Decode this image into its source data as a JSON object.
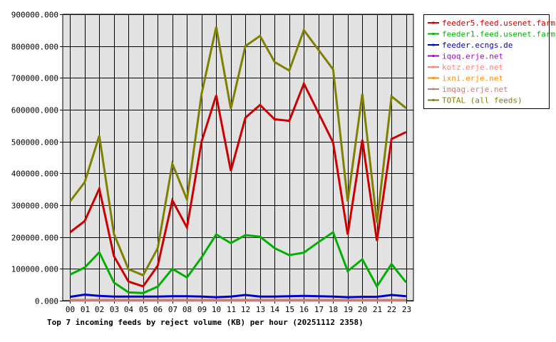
{
  "chart_data": {
    "type": "line",
    "title": "Top 7 incoming feeds by reject volume (KB) per hour (20251112 2358)",
    "xlabel": "",
    "ylabel": "",
    "x": [
      "00",
      "01",
      "02",
      "03",
      "04",
      "05",
      "06",
      "07",
      "08",
      "09",
      "10",
      "11",
      "12",
      "13",
      "14",
      "15",
      "16",
      "17",
      "18",
      "19",
      "20",
      "21",
      "22",
      "23"
    ],
    "ylim": [
      0,
      900000
    ],
    "y_ticks": [
      "0.000",
      "100000.000",
      "200000.000",
      "300000.000",
      "400000.000",
      "500000.000",
      "600000.000",
      "700000.000",
      "800000.000",
      "900000.000"
    ],
    "grid": true,
    "legend_position": "right",
    "series": [
      {
        "name": "feeder5.feed.usenet.farm",
        "color": "#cc0000",
        "values": [
          215000,
          250000,
          352000,
          140000,
          60000,
          45000,
          110000,
          315000,
          230000,
          500000,
          645000,
          408000,
          575000,
          615000,
          570000,
          565000,
          682000,
          590000,
          497000,
          208000,
          505000,
          188000,
          508000,
          530000
        ]
      },
      {
        "name": "feeder1.feed.usenet.farm",
        "color": "#00b000",
        "values": [
          82000,
          104000,
          152000,
          57000,
          26000,
          24000,
          44000,
          100000,
          73000,
          136000,
          208000,
          181000,
          206000,
          201000,
          165000,
          143000,
          151000,
          184000,
          215000,
          93000,
          130000,
          45000,
          115000,
          57000
        ]
      },
      {
        "name": "feeder.ecngs.de",
        "color": "#0000cc",
        "values": [
          12000,
          19000,
          15000,
          13000,
          13000,
          13000,
          13000,
          14000,
          14000,
          13000,
          11000,
          13000,
          18000,
          13000,
          13000,
          14000,
          15000,
          14000,
          13000,
          11000,
          12000,
          12000,
          18000,
          14000
        ]
      },
      {
        "name": "iqoq.erje.net",
        "color": "#aa00cc",
        "values": [
          1500,
          1500,
          1500,
          1500,
          1500,
          1500,
          1500,
          1500,
          1500,
          1500,
          1500,
          1500,
          1500,
          1500,
          1500,
          1500,
          1500,
          1500,
          1500,
          1500,
          1500,
          1500,
          1500,
          1500
        ]
      },
      {
        "name": "kotz.erje.net",
        "color": "#ff8080",
        "values": [
          800,
          800,
          800,
          800,
          800,
          800,
          800,
          800,
          800,
          800,
          800,
          800,
          800,
          800,
          800,
          800,
          800,
          800,
          800,
          800,
          800,
          800,
          800,
          800
        ]
      },
      {
        "name": "ixni.erje.net",
        "color": "#ff8c00",
        "values": [
          600,
          600,
          600,
          600,
          600,
          600,
          600,
          600,
          600,
          600,
          600,
          600,
          600,
          600,
          600,
          600,
          600,
          600,
          600,
          600,
          600,
          600,
          600,
          600
        ]
      },
      {
        "name": "imqag.erje.net",
        "color": "#c08080",
        "values": [
          400,
          400,
          400,
          400,
          400,
          400,
          400,
          400,
          400,
          400,
          400,
          400,
          400,
          400,
          400,
          400,
          400,
          400,
          400,
          400,
          400,
          400,
          400,
          400
        ]
      },
      {
        "name": "TOTAL (all feeds)",
        "color": "#808000",
        "values": [
          312000,
          372000,
          518000,
          210000,
          99000,
          80000,
          165000,
          430000,
          318000,
          650000,
          860000,
          603000,
          800000,
          832000,
          750000,
          723000,
          850000,
          788000,
          727000,
          312000,
          650000,
          245000,
          642000,
          605000
        ]
      }
    ]
  }
}
